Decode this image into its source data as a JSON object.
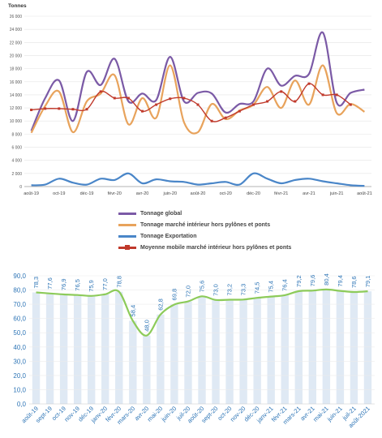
{
  "colors": {
    "global": "#7b5aa6",
    "interieur": "#e8a35c",
    "export": "#4a86c8",
    "moyenne": "#c0392b",
    "line2": "#8dcb5a",
    "bar2": "#dfe9f4",
    "tick2": "#2e75b6"
  },
  "chart_data": [
    {
      "type": "line",
      "ylabel": "Tonnes",
      "ylim": [
        0,
        26000
      ],
      "yticks": [
        "0",
        "2 000",
        "4 000",
        "6 000",
        "8 000",
        "10 000",
        "12 000",
        "14 000",
        "16 000",
        "18 000",
        "20 000",
        "22 000",
        "24 000",
        "26 000"
      ],
      "x": [
        "août-19",
        "sept-19",
        "oct-19",
        "nov-19",
        "déc-19",
        "janv-20",
        "févr-20",
        "mars-20",
        "avr-20",
        "mai-20",
        "juin-20",
        "juil-20",
        "août-20",
        "sept-20",
        "oct-20",
        "nov-20",
        "déc-20",
        "janv-21",
        "févr-21",
        "mars-21",
        "avr-21",
        "mai-21",
        "juin-21",
        "juil-21",
        "août-21"
      ],
      "xticks": [
        "août-19",
        "oct-19",
        "déc-19",
        "févr-20",
        "avr-20",
        "juin-20",
        "août-20",
        "oct-20",
        "déc-20",
        "févr-21",
        "avr-21",
        "juin-21",
        "août-21"
      ],
      "grid": true,
      "legend_position": "bottom",
      "series": [
        {
          "name": "Tonnage global",
          "color_key": "global",
          "values": [
            8500,
            13500,
            16200,
            10000,
            17500,
            15500,
            19500,
            13000,
            14200,
            13200,
            19800,
            13000,
            14300,
            14200,
            11300,
            12600,
            13000,
            18000,
            15400,
            16900,
            17200,
            23500,
            12800,
            14300,
            14800
          ]
        },
        {
          "name": "Tonnage marché intérieur hors pylônes et ponts",
          "color_key": "interieur",
          "values": [
            8200,
            12300,
            14500,
            8300,
            13000,
            14200,
            17000,
            9500,
            13500,
            10500,
            18500,
            9800,
            8300,
            12600,
            10300,
            11600,
            12500,
            15200,
            12000,
            16200,
            12500,
            18500,
            11200,
            12600,
            11400
          ]
        },
        {
          "name": "Tonnage Exportation",
          "color_key": "export",
          "values": [
            200,
            300,
            1200,
            600,
            300,
            1200,
            1000,
            2000,
            500,
            1100,
            800,
            700,
            300,
            500,
            700,
            300,
            2000,
            1200,
            500,
            1000,
            1200,
            800,
            500,
            200,
            100
          ]
        },
        {
          "name": "Moyenne mobile marché intérieur hors pylônes et ponts",
          "color_key": "moyenne",
          "values": [
            11700,
            11900,
            11900,
            11800,
            11800,
            14500,
            13500,
            13500,
            11500,
            12500,
            13400,
            13500,
            12500,
            10000,
            10500,
            11500,
            12500,
            13000,
            14500,
            13000,
            15700,
            14000,
            14000,
            12500,
            null
          ]
        }
      ]
    },
    {
      "type": "line",
      "ylim": [
        0,
        90
      ],
      "yticks": [
        "0,0",
        "10,0",
        "20,0",
        "30,0",
        "40,0",
        "50,0",
        "60,0",
        "70,0",
        "80,0",
        "90,0"
      ],
      "x": [
        "août-19",
        "sept-19",
        "oct-19",
        "nov-19",
        "déc-19",
        "janv-20",
        "févr-20",
        "mars-20",
        "avr-20",
        "mai-20",
        "juin-20",
        "juil-20",
        "août-20",
        "sept-20",
        "oct-20",
        "nov-20",
        "déc-20",
        "janv-21",
        "févr-21",
        "mars-21",
        "avr-21",
        "mai-21",
        "juin-21",
        "juil-21",
        "août-2021"
      ],
      "values": [
        78.3,
        77.6,
        76.9,
        76.5,
        75.9,
        77.0,
        78.8,
        58.4,
        48.0,
        62.8,
        69.8,
        72.0,
        75.6,
        73.0,
        73.2,
        73.3,
        74.5,
        75.4,
        76.4,
        79.2,
        79.6,
        80.4,
        79.4,
        78.6,
        79.1
      ],
      "data_labels": [
        "78,3",
        "77,6",
        "76,9",
        "76,5",
        "75,9",
        "77,0",
        "78,8",
        "58,4",
        "48,0",
        "62,8",
        "69,8",
        "72,0",
        "75,6",
        "73,0",
        "73,2",
        "73,3",
        "74,5",
        "75,4",
        "76,4",
        "79,2",
        "79,6",
        "80,4",
        "79,4",
        "78,6",
        "79,1"
      ]
    }
  ]
}
